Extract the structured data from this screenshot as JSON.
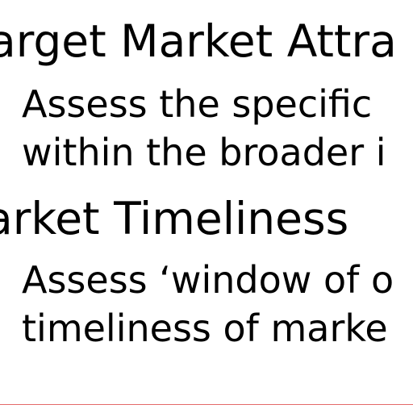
{
  "slide": {
    "heading_1": "arget Market Attra",
    "bullet_1_line_1": "Assess the specific",
    "bullet_1_line_2": "within the broader i",
    "heading_2": "arket Timeliness",
    "bullet_2_line_1": "Assess ‘window of o",
    "bullet_2_line_2": "timeliness of marke"
  },
  "colors": {
    "text": "#000000",
    "background": "#ffffff",
    "footer_rule": "#e46a6a"
  }
}
